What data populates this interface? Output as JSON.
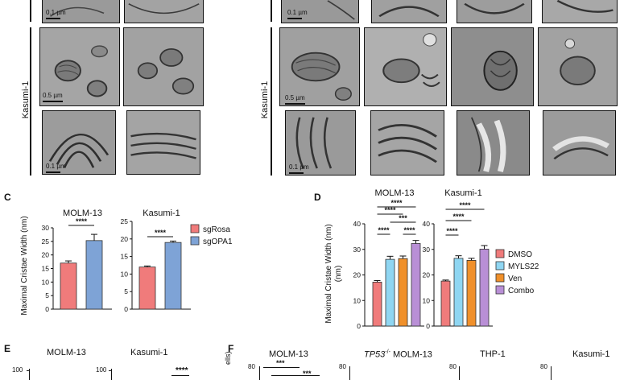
{
  "panels": {
    "C": "C",
    "D": "D",
    "E": "E",
    "F": "F"
  },
  "em": {
    "row_label": "Kasumi-1",
    "scale_01": "0.1 µm",
    "scale_05": "0.5 µm"
  },
  "chart_data": [
    {
      "type": "bar",
      "panel": "C",
      "title": "MOLM-13",
      "categories": [
        "sgRosa",
        "sgOPA1"
      ],
      "values": [
        17,
        25.3
      ],
      "errors": [
        0.8,
        2.3
      ],
      "colors": [
        "#f07b7b",
        "#7ea3d6"
      ],
      "ylabel": "Maximal Cristae Width (nm)",
      "ylim": [
        0,
        30
      ],
      "yticks": [
        0,
        5,
        10,
        15,
        20,
        25,
        30
      ],
      "significance": [
        "****"
      ]
    },
    {
      "type": "bar",
      "panel": "C",
      "title": "Kasumi-1",
      "categories": [
        "sgRosa",
        "sgOPA1"
      ],
      "values": [
        12,
        19
      ],
      "errors": [
        0.3,
        0.4
      ],
      "colors": [
        "#f07b7b",
        "#7ea3d6"
      ],
      "ylim": [
        0,
        25
      ],
      "yticks": [
        0,
        5,
        10,
        15,
        20,
        25
      ],
      "significance": [
        "****"
      ],
      "legend": [
        "sgRosa",
        "sgOPA1"
      ]
    },
    {
      "type": "bar",
      "panel": "D",
      "title": "MOLM-13",
      "categories": [
        "DMSO",
        "MYLS22",
        "Ven",
        "Combo"
      ],
      "values": [
        17.2,
        26.1,
        26.4,
        32.3
      ],
      "errors": [
        0.6,
        1.2,
        1.0,
        1.2
      ],
      "colors": [
        "#f07b7b",
        "#8fd6f2",
        "#f0902a",
        "#b98fd6"
      ],
      "ylabel": "Maximal Cristae Width (nm)",
      "ylim": [
        0,
        40
      ],
      "yticks": [
        0,
        10,
        20,
        30,
        40
      ],
      "significance": [
        "****",
        "****",
        "***",
        "****",
        "****"
      ]
    },
    {
      "type": "bar",
      "panel": "D",
      "title": "Kasumi-1",
      "categories": [
        "DMSO",
        "MYLS22",
        "Ven",
        "Combo"
      ],
      "values": [
        17.6,
        26.5,
        25.7,
        30.1
      ],
      "errors": [
        0.4,
        1.0,
        0.8,
        1.4
      ],
      "colors": [
        "#f07b7b",
        "#8fd6f2",
        "#f0902a",
        "#b98fd6"
      ],
      "ylim": [
        0,
        40
      ],
      "yticks": [
        0,
        10,
        20,
        30,
        40
      ],
      "significance": [
        "****",
        "****",
        "****"
      ],
      "legend": [
        "DMSO",
        "MYLS22",
        "Ven",
        "Combo"
      ]
    }
  ],
  "bottom": {
    "E_titles": [
      "MOLM-13",
      "Kasumi-1"
    ],
    "E_tick": "100",
    "E_sig": "****",
    "F_titles": [
      "MOLM-13",
      "MOLM-13",
      "THP-1",
      "Kasumi-1"
    ],
    "F_tp53": "TP53",
    "F_tp53_sup": "-/-",
    "F_tick": "80",
    "F_ylabel": "ells)",
    "F_sig": [
      "***",
      "***"
    ]
  }
}
